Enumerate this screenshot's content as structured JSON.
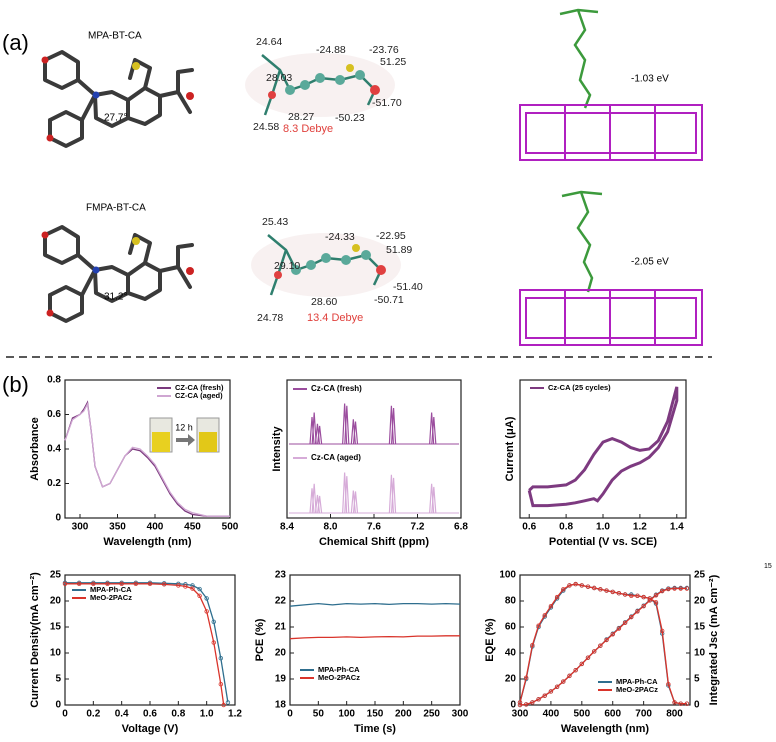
{
  "panel_labels": [
    "(a)",
    "(b)"
  ],
  "page_number": "15",
  "molecules": [
    {
      "name": "MPA-BT-CA",
      "angle": "27.7°",
      "charges": [
        "24.64",
        "-24.88",
        "-23.76",
        "28.03",
        "51.25",
        "-51.70",
        "-50.23",
        "28.27",
        "24.58"
      ],
      "dipole": "8.3 Debye",
      "adsorption_energy": "-1.03 eV"
    },
    {
      "name": "FMPA-BT-CA",
      "angle": "31.2°",
      "charges": [
        "25.43",
        "-24.33",
        "-22.95",
        "51.89",
        "29.10",
        "-51.40",
        "28.60",
        "-50.71",
        "24.78"
      ],
      "dipole": "13.4 Debye",
      "adsorption_energy": "-2.05 eV"
    }
  ],
  "chart_data": [
    {
      "type": "line",
      "x_label": "Wavelength (nm)",
      "y_label": "Absorbance",
      "annotation": "12 h",
      "x": [
        280,
        290,
        300,
        305,
        310,
        315,
        320,
        330,
        340,
        350,
        360,
        370,
        380,
        390,
        400,
        410,
        420,
        430,
        440,
        450,
        470,
        500
      ],
      "series": [
        {
          "name": "CZ-CA (fresh)",
          "color": "#7b3a7e",
          "values": [
            0.45,
            0.58,
            0.6,
            0.63,
            0.67,
            0.5,
            0.3,
            0.18,
            0.2,
            0.28,
            0.36,
            0.4,
            0.39,
            0.35,
            0.3,
            0.22,
            0.14,
            0.08,
            0.04,
            0.02,
            0.01,
            0.01
          ]
        },
        {
          "name": "CZ-CA (aged)",
          "color": "#cfa6d2",
          "values": [
            0.45,
            0.57,
            0.6,
            0.62,
            0.66,
            0.5,
            0.3,
            0.18,
            0.2,
            0.28,
            0.36,
            0.41,
            0.4,
            0.36,
            0.31,
            0.23,
            0.15,
            0.09,
            0.05,
            0.03,
            0.01,
            0.01
          ]
        }
      ],
      "xlim": [
        280,
        500
      ],
      "xticks": [
        300,
        350,
        400,
        450,
        500
      ],
      "ylim": [
        0,
        0.8
      ],
      "yticks": [
        0,
        0.2,
        0.4,
        0.6,
        0.8
      ]
    },
    {
      "type": "spectrum",
      "x_label": "Chemical Shift (ppm)",
      "y_label": "Intensity",
      "series": [
        {
          "name": "Cz-CA (fresh)",
          "color": "#9b4d9e",
          "x": [
            8.17,
            8.15,
            8.12,
            8.1,
            7.87,
            7.85,
            7.79,
            7.77,
            7.44,
            7.42,
            7.07,
            7.05
          ],
          "values": [
            0.6,
            0.7,
            0.45,
            0.4,
            0.9,
            0.85,
            0.55,
            0.5,
            0.85,
            0.8,
            0.7,
            0.6
          ]
        },
        {
          "name": "Cz-CA (aged)",
          "color": "#d6abd8",
          "x": [
            8.17,
            8.15,
            8.12,
            8.1,
            7.87,
            7.85,
            7.79,
            7.77,
            7.44,
            7.42,
            7.07,
            7.05
          ],
          "values": [
            0.55,
            0.65,
            0.4,
            0.38,
            0.9,
            0.82,
            0.5,
            0.48,
            0.85,
            0.78,
            0.65,
            0.58
          ]
        }
      ],
      "xlim": [
        8.4,
        6.8
      ],
      "xticks": [
        8.4,
        {
          "value": 8,
          "label": "8.0"
        },
        7.6,
        7.2,
        6.8
      ],
      "ylim": [
        0,
        1
      ]
    },
    {
      "type": "line",
      "x_label": "Potential (V vs. SCE)",
      "y_label": "Current (μA)",
      "series": [
        {
          "name": "Cz-CA (25 cycles)",
          "color": "#7d3a80",
          "x": [
            0.6,
            0.62,
            0.7,
            0.8,
            0.85,
            0.9,
            0.95,
            1.0,
            1.05,
            1.1,
            1.15,
            1.2,
            1.25,
            1.3,
            1.35,
            1.4,
            1.4,
            1.35,
            1.3,
            1.25,
            1.2,
            1.15,
            1.1,
            1.05,
            1.0,
            0.97,
            0.95,
            0.9,
            0.85,
            0.8,
            0.7,
            0.62,
            0.6
          ],
          "values": [
            -0.6,
            -0.55,
            -0.55,
            -0.52,
            -0.45,
            -0.3,
            -0.08,
            0.1,
            0.15,
            0.1,
            0.02,
            -0.02,
            0.0,
            0.12,
            0.4,
            0.9,
            0.7,
            0.25,
            0.02,
            -0.12,
            -0.2,
            -0.25,
            -0.32,
            -0.45,
            -0.65,
            -0.75,
            -0.72,
            -0.75,
            -0.78,
            -0.8,
            -0.82,
            -0.82,
            -0.6
          ]
        }
      ],
      "xlim": [
        0.55,
        1.45
      ],
      "xticks": [
        0.6,
        0.8,
        {
          "value": 1,
          "label": "1.0"
        },
        1.2,
        1.4
      ],
      "ylim": [
        -1,
        1
      ]
    },
    {
      "type": "line",
      "x_label": "Voltage (V)",
      "y_label": "Current Density(mA cm⁻²)",
      "markers": true,
      "series": [
        {
          "name": "MPA-Ph-CA",
          "color": "#2e6e8e",
          "x": [
            0,
            0.1,
            0.2,
            0.3,
            0.4,
            0.5,
            0.6,
            0.7,
            0.8,
            0.85,
            0.9,
            0.95,
            1.0,
            1.05,
            1.1,
            1.15
          ],
          "values": [
            23.5,
            23.5,
            23.5,
            23.5,
            23.5,
            23.5,
            23.5,
            23.4,
            23.3,
            23.2,
            23.0,
            22.3,
            20.5,
            16,
            9,
            0.5
          ]
        },
        {
          "name": "MeO-2PACz",
          "color": "#d9342b",
          "x": [
            0,
            0.1,
            0.2,
            0.3,
            0.4,
            0.5,
            0.6,
            0.7,
            0.8,
            0.85,
            0.9,
            0.95,
            1.0,
            1.05,
            1.1,
            1.12
          ],
          "values": [
            23.3,
            23.3,
            23.3,
            23.3,
            23.3,
            23.3,
            23.3,
            23.2,
            23.0,
            22.8,
            22.4,
            21,
            18,
            12,
            4,
            0
          ]
        }
      ],
      "xlim": [
        0,
        1.2
      ],
      "xticks": [
        0,
        0.2,
        0.4,
        0.6,
        0.8,
        {
          "value": 1,
          "label": "1.0"
        },
        1.2
      ],
      "ylim": [
        0,
        25
      ],
      "yticks": [
        0,
        5,
        10,
        15,
        20,
        25
      ]
    },
    {
      "type": "line",
      "x_label": "Time (s)",
      "y_label": "PCE (%)",
      "x": [
        0,
        25,
        50,
        75,
        100,
        125,
        150,
        175,
        200,
        225,
        250,
        275,
        300
      ],
      "series": [
        {
          "name": "MPA-Ph-CA",
          "color": "#2e6e8e",
          "values": [
            21.8,
            21.85,
            21.9,
            21.85,
            21.9,
            21.88,
            21.9,
            21.87,
            21.9,
            21.9,
            21.88,
            21.9,
            21.88
          ]
        },
        {
          "name": "MeO-2PACz",
          "color": "#d9342b",
          "values": [
            20.55,
            20.58,
            20.6,
            20.6,
            20.62,
            20.6,
            20.62,
            20.63,
            20.62,
            20.65,
            20.65,
            20.66,
            20.66
          ]
        }
      ],
      "xlim": [
        0,
        300
      ],
      "xticks": [
        0,
        50,
        100,
        150,
        200,
        250,
        300
      ],
      "ylim": [
        18,
        23
      ],
      "yticks": [
        18,
        19,
        20,
        21,
        22,
        23
      ]
    },
    {
      "type": "line",
      "x_label": "Wavelength (nm)",
      "y_label": "EQE (%)",
      "y2_label": "Integrated Jsc (mA cm⁻²)",
      "markers": true,
      "x": [
        300,
        320,
        340,
        360,
        380,
        400,
        420,
        440,
        460,
        480,
        500,
        520,
        540,
        560,
        580,
        600,
        620,
        640,
        660,
        680,
        700,
        720,
        740,
        760,
        780,
        800,
        820,
        840
      ],
      "series": [
        {
          "name": "MPA-Ph-CA",
          "color": "#2e6e8e",
          "values": [
            2,
            20,
            45,
            60,
            68,
            75,
            82,
            88,
            92,
            93,
            92,
            91,
            90,
            89,
            88,
            87,
            86,
            85,
            85,
            84,
            83,
            82,
            78,
            55,
            15,
            2,
            1,
            1
          ],
          "y2_values": [
            0,
            0.1,
            0.5,
            1.1,
            1.8,
            2.6,
            3.5,
            4.5,
            5.6,
            6.7,
            7.9,
            9.1,
            10.3,
            11.4,
            12.6,
            13.7,
            14.8,
            15.9,
            17.0,
            18.1,
            19.1,
            20.2,
            21.2,
            22.0,
            22.4,
            22.5,
            22.5,
            22.5
          ]
        },
        {
          "name": "MeO-2PACz",
          "color": "#d9342b",
          "values": [
            2,
            21,
            46,
            61,
            69,
            76,
            83,
            89,
            92,
            93,
            92,
            91,
            90,
            89,
            88,
            87,
            86,
            85,
            84,
            84,
            83,
            82,
            79,
            57,
            16,
            2,
            1,
            1
          ],
          "y2_values": [
            0,
            0.1,
            0.5,
            1.1,
            1.8,
            2.6,
            3.5,
            4.5,
            5.6,
            6.7,
            7.9,
            9.1,
            10.3,
            11.4,
            12.5,
            13.6,
            14.7,
            15.8,
            16.9,
            18.0,
            19.0,
            20.1,
            21.1,
            21.9,
            22.3,
            22.4,
            22.4,
            22.4
          ]
        }
      ],
      "xlim": [
        300,
        850
      ],
      "xticks": [
        300,
        400,
        500,
        600,
        700,
        800
      ],
      "ylim": [
        0,
        100
      ],
      "yticks": [
        0,
        20,
        40,
        60,
        80,
        100
      ],
      "y2lim": [
        0,
        25
      ],
      "y2ticks": [
        0,
        5,
        10,
        15,
        20,
        25
      ]
    }
  ]
}
